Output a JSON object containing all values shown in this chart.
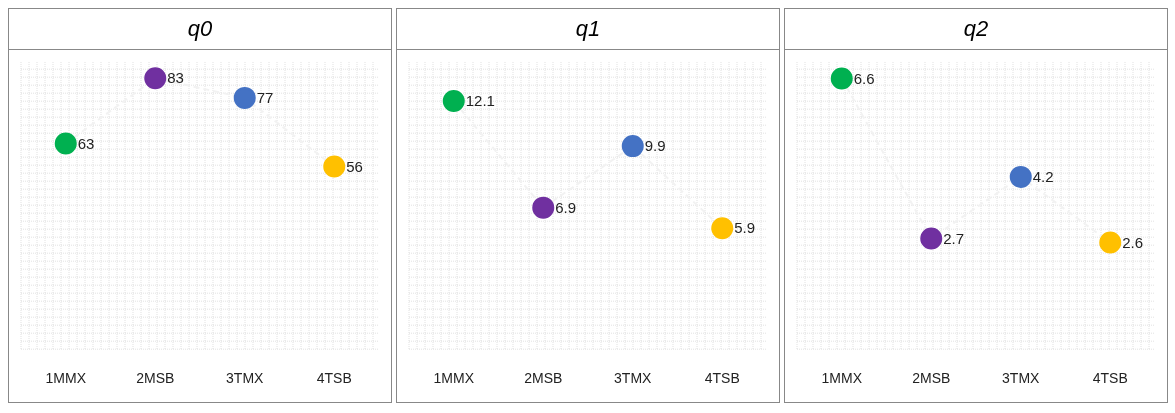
{
  "chart_data": [
    {
      "type": "line",
      "title": "q0",
      "categories": [
        "1MMX",
        "2MSB",
        "3TMX",
        "4TSB"
      ],
      "series": [
        {
          "color": "#f2f2f2",
          "values": [
            63,
            83,
            77,
            56
          ]
        }
      ],
      "colors": [
        "#00b050",
        "#7030a0",
        "#4472c4",
        "#ffc000"
      ],
      "ylim": [
        0,
        88
      ],
      "tick_labels": "x",
      "data_labels": true,
      "marker": "circle",
      "line_style": "dashed",
      "grid": true
    },
    {
      "type": "line",
      "title": "q1",
      "categories": [
        "1MMX",
        "2MSB",
        "3TMX",
        "4TSB"
      ],
      "series": [
        {
          "color": "#f2f2f2",
          "values": [
            12.1,
            6.9,
            9.9,
            5.9
          ]
        }
      ],
      "colors": [
        "#00b050",
        "#7030a0",
        "#4472c4",
        "#ffc000"
      ],
      "ylim": [
        0,
        14
      ],
      "tick_labels": "x",
      "data_labels": true,
      "marker": "circle",
      "line_style": "dashed",
      "grid": true
    },
    {
      "type": "line",
      "title": "q2",
      "categories": [
        "1MMX",
        "2MSB",
        "3TMX",
        "4TSB"
      ],
      "series": [
        {
          "color": "#f2f2f2",
          "values": [
            6.6,
            2.7,
            4.2,
            2.6
          ]
        }
      ],
      "colors": [
        "#00b050",
        "#7030a0",
        "#4472c4",
        "#ffc000"
      ],
      "ylim": [
        0,
        7
      ],
      "tick_labels": "x",
      "data_labels": true,
      "marker": "circle",
      "line_style": "dashed",
      "grid": true
    }
  ]
}
